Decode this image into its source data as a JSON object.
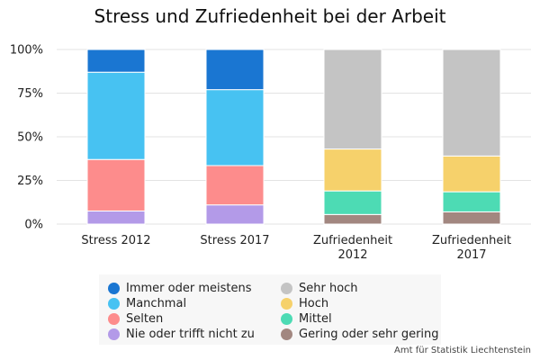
{
  "source": "Amt für Statistik Liechtenstein",
  "chart_data": {
    "type": "bar",
    "stacked": true,
    "title": "Stress und Zufriedenheit bei der Arbeit",
    "xlabel": "",
    "ylabel": "",
    "ylim": [
      0,
      100
    ],
    "y_ticks": [
      "0%",
      "25%",
      "50%",
      "75%",
      "100%"
    ],
    "y_tick_values": [
      0,
      25,
      50,
      75,
      100
    ],
    "grid": true,
    "legend_position": "bottom",
    "categories": [
      [
        "Stress 2012"
      ],
      [
        "Stress 2017"
      ],
      [
        "Zufriedenheit",
        "2012"
      ],
      [
        "Zufriedenheit",
        "2017"
      ]
    ],
    "series": [
      {
        "name": "Nie oder trifft nicht zu",
        "color": "#b39ae8",
        "values": [
          7.5,
          11,
          0,
          0
        ]
      },
      {
        "name": "Selten",
        "color": "#fd8c8c",
        "values": [
          29.5,
          22.5,
          0,
          0
        ]
      },
      {
        "name": "Manchmal",
        "color": "#47c2f2",
        "values": [
          50,
          43.5,
          0,
          0
        ]
      },
      {
        "name": "Immer oder meistens",
        "color": "#1a76d2",
        "values": [
          13,
          23,
          0,
          0
        ]
      },
      {
        "name": "Gering oder sehr gering",
        "color": "#a28780",
        "values": [
          0,
          0,
          5.5,
          7
        ]
      },
      {
        "name": "Mittel",
        "color": "#4ddbb4",
        "values": [
          0,
          0,
          13.5,
          11.5
        ]
      },
      {
        "name": "Hoch",
        "color": "#f6d16b",
        "values": [
          0,
          0,
          24,
          20.5
        ]
      },
      {
        "name": "Sehr hoch",
        "color": "#c4c4c4",
        "values": [
          0,
          0,
          57,
          61
        ]
      }
    ],
    "legend_order": [
      "Immer oder meistens",
      "Manchmal",
      "Selten",
      "Nie oder trifft nicht zu",
      "Sehr hoch",
      "Hoch",
      "Mittel",
      "Gering oder sehr gering"
    ]
  }
}
